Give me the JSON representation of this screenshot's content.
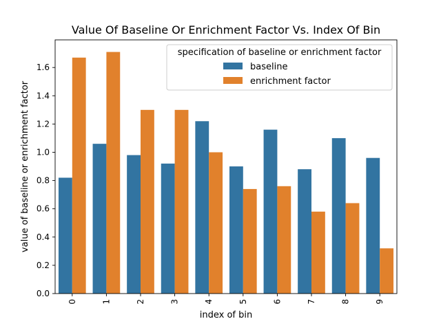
{
  "chart_data": {
    "type": "bar",
    "title": "Value Of Baseline Or Enrichment Factor Vs. Index Of Bin",
    "xlabel": "index of bin",
    "ylabel": "value of baseline or enrichment factor",
    "categories": [
      "0",
      "1",
      "2",
      "3",
      "4",
      "5",
      "6",
      "7",
      "8",
      "9"
    ],
    "series": [
      {
        "name": "baseline",
        "color": "#3274a1",
        "values": [
          0.82,
          1.06,
          0.98,
          0.92,
          1.22,
          0.9,
          1.16,
          0.88,
          1.1,
          0.96
        ]
      },
      {
        "name": "enrichment factor",
        "color": "#e1812c",
        "values": [
          1.67,
          1.71,
          1.3,
          1.3,
          1.0,
          0.74,
          0.76,
          0.58,
          0.64,
          0.32
        ]
      }
    ],
    "ylim": [
      0,
      1.7955
    ],
    "yticks": [
      "0.0",
      "0.2",
      "0.4",
      "0.6",
      "0.8",
      "1.0",
      "1.2",
      "1.4",
      "1.6"
    ],
    "legend": {
      "title": "specification of baseline or enrichment factor",
      "placement": "top-right"
    },
    "grid": false
  }
}
